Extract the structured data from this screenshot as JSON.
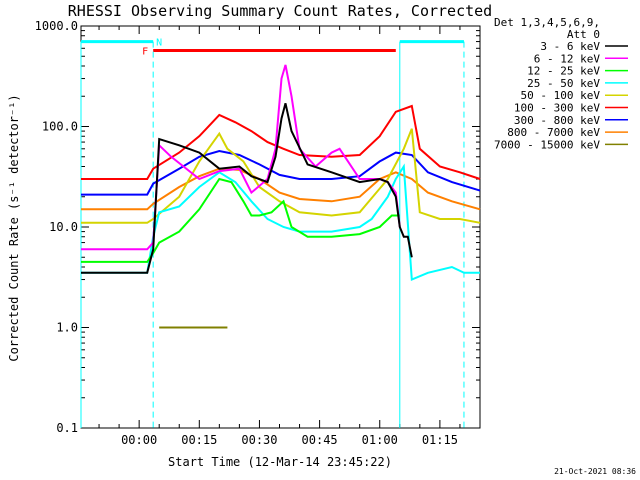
{
  "chart_data": {
    "type": "line",
    "title": "RHESSI Observing Summary Count Rates, Corrected",
    "xlabel": "Start Time (12-Mar-14 23:45:22)",
    "ylabel": "Corrected Count Rate (s⁻¹ detector⁻¹)",
    "yscale": "log",
    "ylim": [
      0.1,
      1000
    ],
    "xlim_minutes": [
      -14.5,
      85
    ],
    "x_tick_labels": [
      "00:00",
      "00:15",
      "00:30",
      "00:45",
      "01:00",
      "01:15"
    ],
    "x_tick_minutes": [
      0,
      15,
      30,
      45,
      60,
      75
    ],
    "y_tick_labels": [
      "0.1",
      "1.0",
      "10.0",
      "100.0",
      "1000.0"
    ],
    "y_tick_values": [
      0.1,
      1,
      10,
      100,
      1000
    ],
    "grid": false,
    "legend_header": [
      "Det 1,3,4,5,6,9,",
      "Att 0"
    ],
    "legend_position": "right",
    "footer": "21-Oct-2021 08:36",
    "flag_labels": {
      "night": "N",
      "flare": "F"
    },
    "bars": [
      {
        "label": "N",
        "color": "#00ffff",
        "value": 700,
        "segments": [
          [
            -14.5,
            3.5
          ],
          [
            65,
            81
          ]
        ]
      },
      {
        "label": "F",
        "color": "#ff0000",
        "value": 570,
        "segments": [
          [
            3.5,
            64
          ]
        ]
      }
    ],
    "vlines": [
      {
        "x": -14.5,
        "style": "solid"
      },
      {
        "x": 3.5,
        "style": "dashed"
      },
      {
        "x": 65,
        "style": "solid"
      },
      {
        "x": 81,
        "style": "dashed"
      }
    ],
    "series": [
      {
        "name": "3 - 6 keV",
        "color": "#000000",
        "x": [
          -14.5,
          2,
          3.5,
          5,
          10,
          15,
          20,
          25,
          28,
          32,
          34,
          35.5,
          36.5,
          38,
          42,
          48,
          55,
          60,
          62,
          64,
          65,
          66,
          67,
          68
        ],
        "y": [
          3.5,
          3.5,
          6,
          75,
          65,
          55,
          38,
          40,
          32,
          28,
          50,
          120,
          170,
          90,
          42,
          35,
          28,
          30,
          28,
          20,
          10,
          8,
          8,
          5
        ]
      },
      {
        "name": "6 - 12 keV",
        "color": "#ff00ff",
        "x": [
          -14.5,
          2,
          3.5,
          5,
          8,
          15,
          20,
          25,
          28,
          32,
          34,
          35.5,
          36.5,
          38,
          40,
          44,
          48,
          50,
          55,
          60,
          62,
          64,
          65
        ],
        "y": [
          6,
          6,
          7,
          65,
          50,
          30,
          36,
          38,
          22,
          30,
          60,
          300,
          410,
          200,
          60,
          40,
          55,
          60,
          30,
          30,
          28,
          22,
          10
        ]
      },
      {
        "name": "12 - 25 keV",
        "color": "#00ff00",
        "x": [
          -14.5,
          2,
          3.5,
          5,
          10,
          15,
          20,
          23,
          26,
          28,
          30,
          33,
          36,
          38,
          42,
          48,
          55,
          60,
          63,
          65
        ],
        "y": [
          4.5,
          4.5,
          5.5,
          7,
          9,
          15,
          30,
          28,
          18,
          13,
          13,
          14,
          18,
          10,
          8,
          8,
          8.5,
          10,
          13,
          13
        ]
      },
      {
        "name": "25 - 50 keV",
        "color": "#00ffff",
        "x": [
          -14.5,
          2,
          3.5,
          5,
          10,
          15,
          20,
          24,
          28,
          32,
          36,
          40,
          48,
          55,
          58,
          62,
          64,
          66,
          68,
          72,
          78,
          81,
          85
        ],
        "y": [
          3.5,
          3.5,
          8,
          14,
          16,
          25,
          35,
          28,
          18,
          12,
          10,
          9,
          9,
          10,
          12,
          20,
          30,
          40,
          3,
          3.5,
          4,
          3.5,
          3.5
        ]
      },
      {
        "name": "50 - 100 keV",
        "color": "#d4d400",
        "x": [
          -14.5,
          2,
          3.5,
          10,
          15,
          20,
          22,
          26,
          30,
          35,
          40,
          48,
          55,
          62,
          66,
          68,
          70,
          75,
          80,
          85
        ],
        "y": [
          11,
          11,
          12,
          20,
          45,
          85,
          60,
          45,
          25,
          18,
          14,
          13,
          14,
          30,
          60,
          95,
          14,
          12,
          12,
          11
        ]
      },
      {
        "name": "100 - 300 keV",
        "color": "#ff0000",
        "x": [
          -14.5,
          2,
          3.5,
          10,
          15,
          20,
          24,
          28,
          32,
          36,
          40,
          48,
          55,
          60,
          64,
          68,
          70,
          75,
          80,
          85
        ],
        "y": [
          30,
          30,
          38,
          55,
          80,
          130,
          110,
          90,
          70,
          60,
          52,
          50,
          52,
          80,
          140,
          160,
          60,
          40,
          35,
          30
        ]
      },
      {
        "name": "300 - 800 keV",
        "color": "#0000ff",
        "x": [
          -14.5,
          2,
          3.5,
          10,
          15,
          20,
          25,
          30,
          35,
          40,
          48,
          55,
          60,
          64,
          68,
          72,
          78,
          85
        ],
        "y": [
          21,
          21,
          27,
          38,
          50,
          57,
          52,
          42,
          33,
          30,
          30,
          32,
          45,
          55,
          52,
          35,
          28,
          23
        ]
      },
      {
        "name": "800 - 7000 keV",
        "color": "#ff8000",
        "x": [
          -14.5,
          2,
          3.5,
          10,
          15,
          20,
          25,
          30,
          35,
          40,
          48,
          55,
          60,
          64,
          68,
          72,
          78,
          85
        ],
        "y": [
          15,
          15,
          17,
          25,
          32,
          38,
          37,
          30,
          22,
          19,
          18,
          20,
          30,
          35,
          30,
          22,
          18,
          15
        ]
      },
      {
        "name": "7000 - 15000 keV",
        "color": "#808000",
        "x": [
          5,
          22
        ],
        "y": [
          1.0,
          1.0
        ]
      }
    ]
  }
}
